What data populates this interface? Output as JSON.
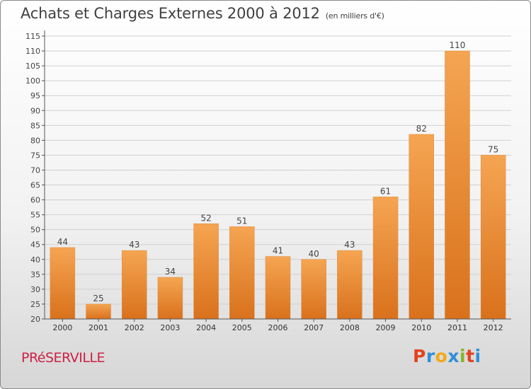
{
  "header": {
    "title": "Achats et Charges Externes 2000 à 2012",
    "subtitle": "(en milliers d'€)"
  },
  "footer": {
    "commune": "PRéSERVILLE",
    "logo_text": "Proxiti",
    "logo_colors": [
      "#e2431e",
      "#2f8fd8",
      "#f3a91b",
      "#2f8fd8",
      "#84b526",
      "#e2431e",
      "#2f8fd8"
    ]
  },
  "colors": {
    "bar_light": "#f5a552",
    "bar_dark": "#d9711c",
    "axis": "#555555",
    "grid": "#d0d0d0"
  },
  "chart_data": {
    "type": "bar",
    "title": "Achats et Charges Externes 2000 à 2012",
    "subtitle": "(en milliers d'€)",
    "categories": [
      "2000",
      "2001",
      "2002",
      "2003",
      "2004",
      "2005",
      "2006",
      "2007",
      "2008",
      "2009",
      "2010",
      "2011",
      "2012"
    ],
    "values": [
      44,
      25,
      43,
      34,
      52,
      51,
      41,
      40,
      43,
      61,
      82,
      110,
      75
    ],
    "ylim": [
      20,
      115
    ],
    "yticks": [
      20,
      25,
      30,
      35,
      40,
      45,
      50,
      55,
      60,
      65,
      70,
      75,
      80,
      85,
      90,
      95,
      100,
      105,
      110,
      115
    ],
    "grid": true,
    "data_labels": true
  }
}
